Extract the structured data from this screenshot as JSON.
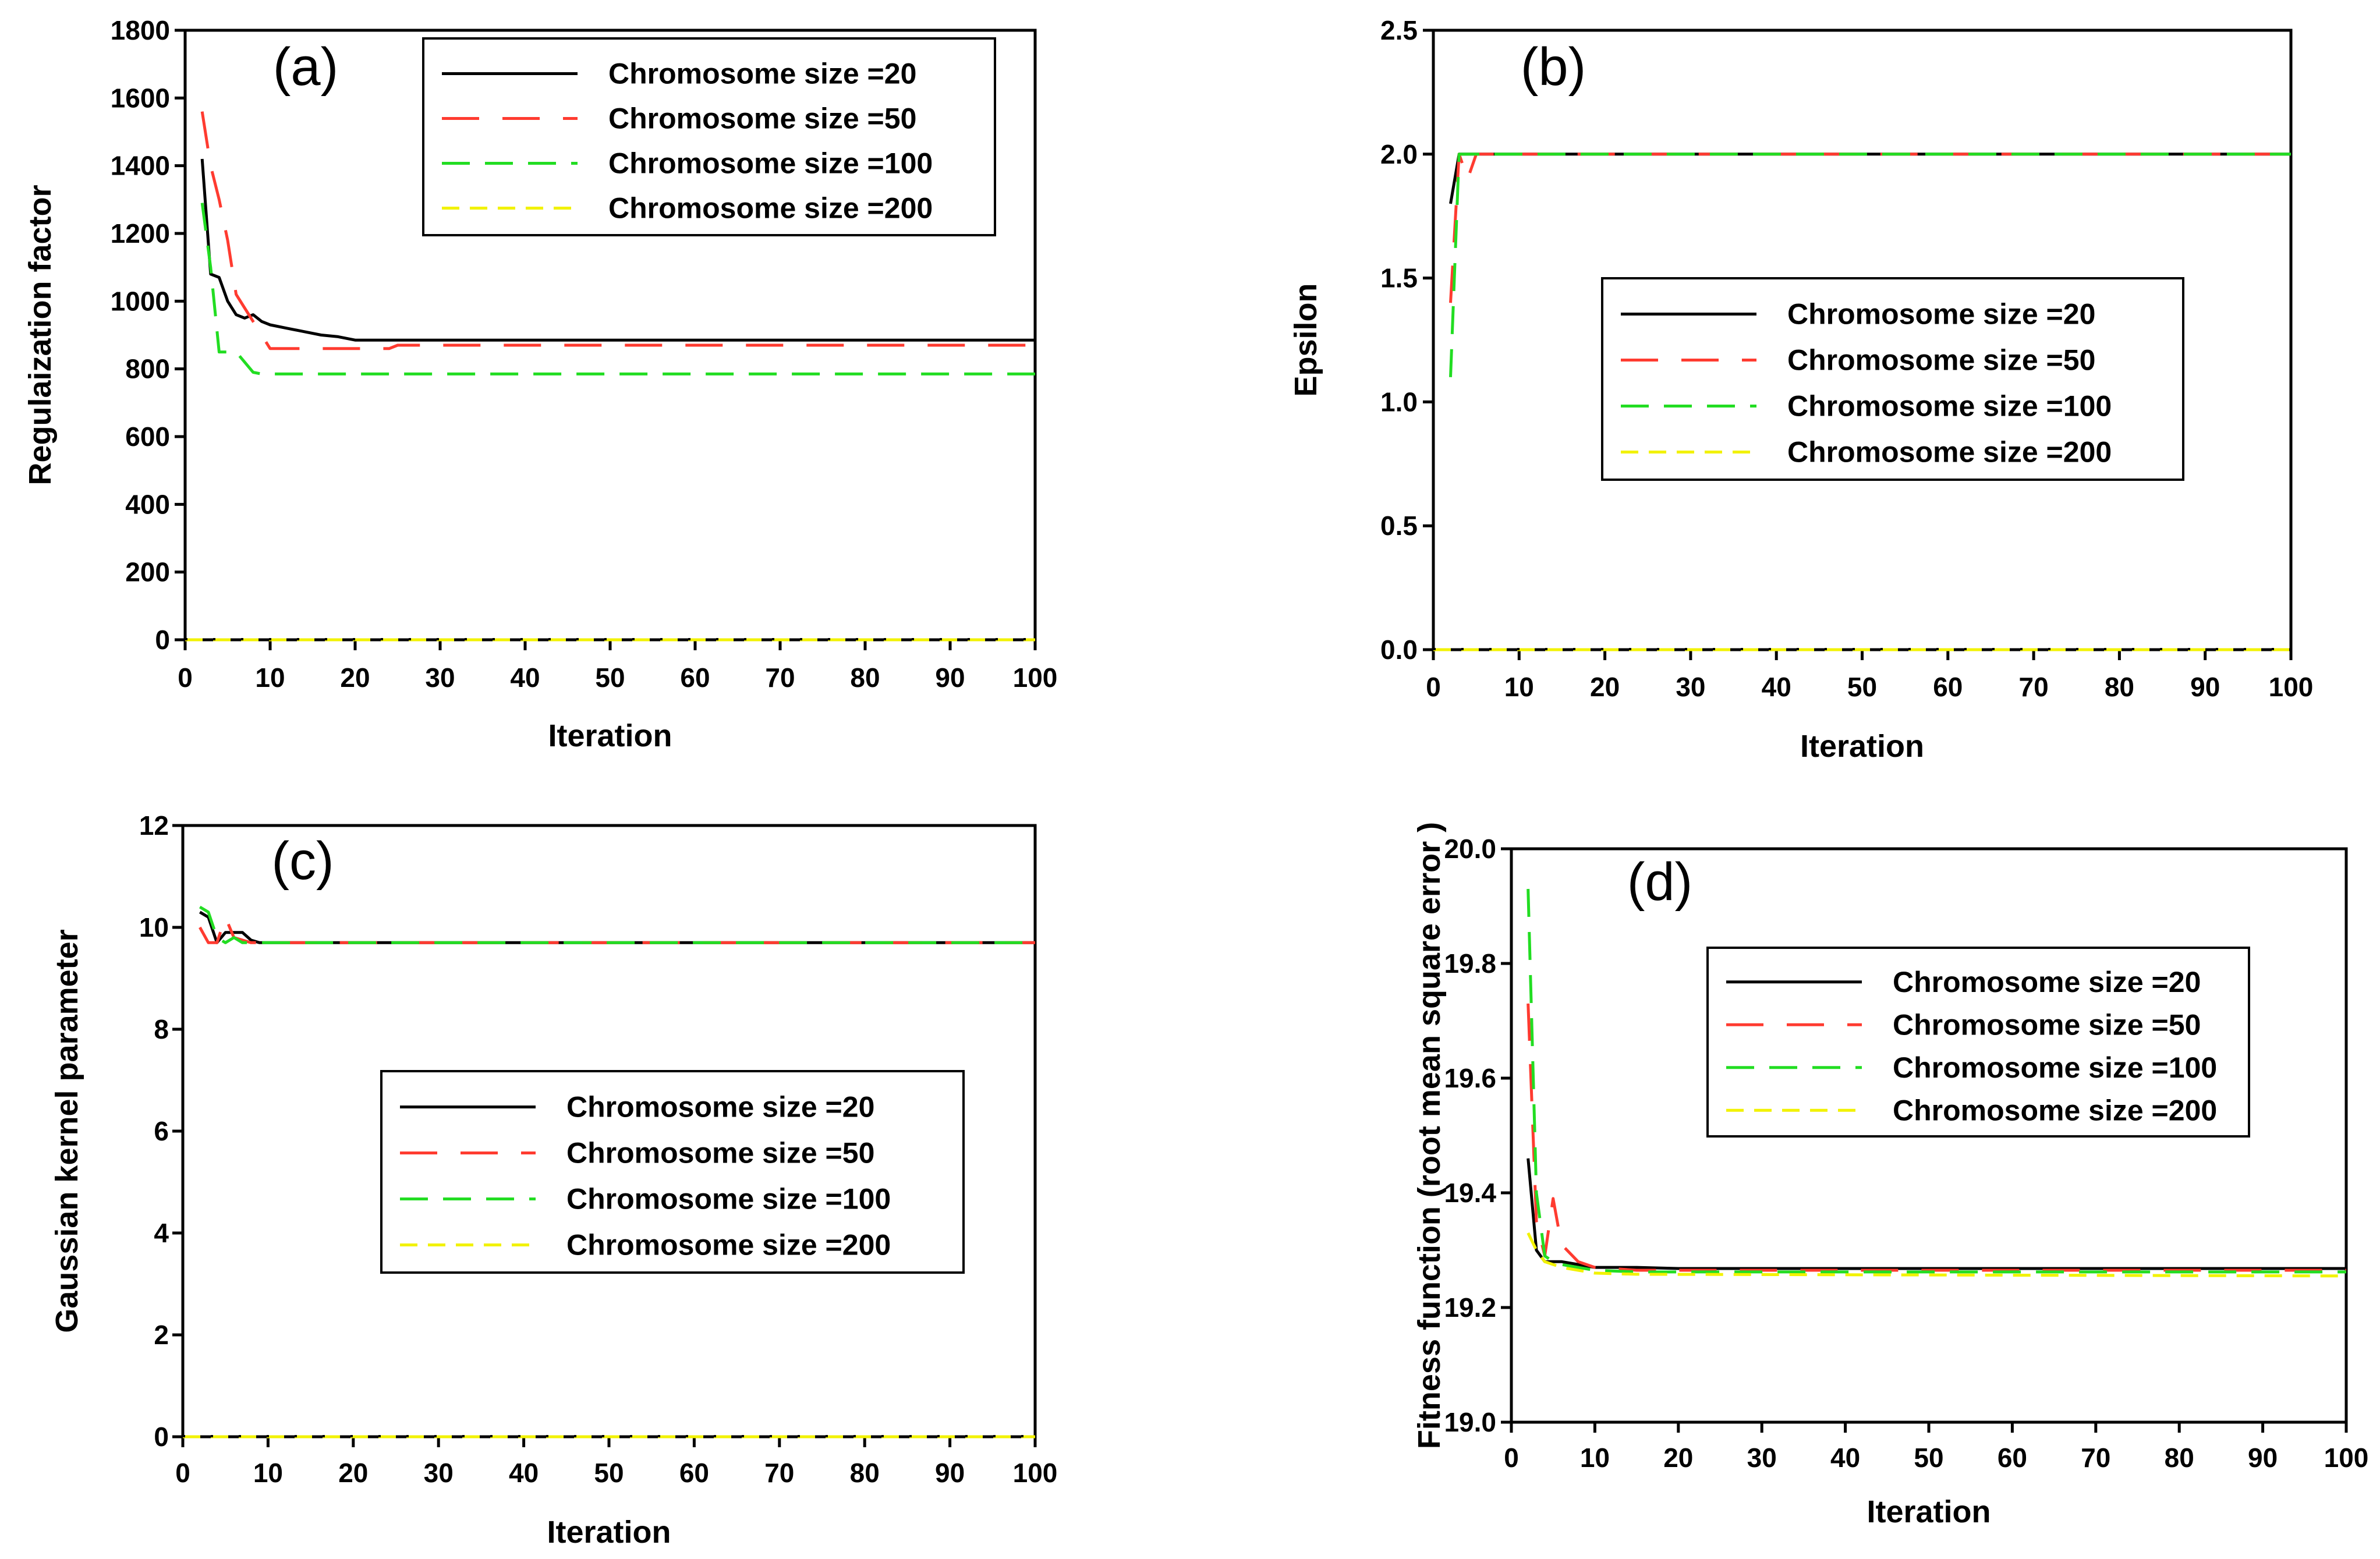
{
  "figure": {
    "type": "multi-panel line chart",
    "legend_entries": [
      "Chromosome size =20",
      "Chromosome size =50",
      "Chromosome size =100",
      "Chromosome size =200"
    ]
  },
  "chart_data": [
    {
      "type": "line",
      "panel_label": "(a)",
      "xlabel": "Iteration",
      "ylabel": "Regulaization factor",
      "xlim": [
        0,
        100
      ],
      "ylim": [
        0,
        1800
      ],
      "xticks": [
        0,
        10,
        20,
        30,
        40,
        50,
        60,
        70,
        80,
        90,
        100
      ],
      "yticks": [
        0,
        200,
        400,
        600,
        800,
        1000,
        1200,
        1400,
        1600,
        1800
      ],
      "ytick_labels": [
        "0",
        "200",
        "400",
        "600",
        "800",
        "1000",
        "1200",
        "1400",
        "1600",
        "1800"
      ],
      "legend_position": "top-right",
      "series": [
        {
          "name": "Chromosome size =20",
          "color": "#000000",
          "style": "solid",
          "x": [
            2,
            3,
            4,
            5,
            6,
            7,
            8,
            9,
            10,
            12,
            14,
            16,
            18,
            20,
            30,
            40,
            50,
            60,
            70,
            80,
            90,
            100
          ],
          "y": [
            1420,
            1080,
            1070,
            1000,
            960,
            950,
            960,
            940,
            930,
            920,
            910,
            900,
            895,
            885,
            885,
            885,
            885,
            885,
            885,
            885,
            885,
            885
          ]
        },
        {
          "name": "Chromosome size =50",
          "color": "#ff3b30",
          "style": "dashed",
          "x": [
            2,
            3,
            4,
            5,
            6,
            7,
            8,
            9,
            10,
            15,
            20,
            24,
            25,
            30,
            40,
            50,
            60,
            70,
            80,
            90,
            100
          ],
          "y": [
            1560,
            1400,
            1300,
            1180,
            1020,
            980,
            940,
            900,
            860,
            860,
            860,
            860,
            870,
            870,
            870,
            870,
            870,
            870,
            870,
            870,
            870
          ]
        },
        {
          "name": "Chromosome size =100",
          "color": "#22dd22",
          "style": "dashed",
          "x": [
            2,
            3,
            4,
            5,
            6,
            7,
            8,
            9,
            10,
            15,
            20,
            30,
            40,
            50,
            60,
            70,
            80,
            90,
            100
          ],
          "y": [
            1290,
            1100,
            850,
            850,
            850,
            820,
            790,
            785,
            785,
            785,
            785,
            785,
            785,
            785,
            785,
            785,
            785,
            785,
            785
          ]
        },
        {
          "name": "Chromosome size =200",
          "color": "#f2f200",
          "style": "dashed",
          "x": [
            0,
            100
          ],
          "y": [
            0,
            0
          ]
        }
      ]
    },
    {
      "type": "line",
      "panel_label": "(b)",
      "xlabel": "Iteration",
      "ylabel": "Epsilon",
      "xlim": [
        0,
        100
      ],
      "ylim": [
        0,
        2.5
      ],
      "xticks": [
        0,
        10,
        20,
        30,
        40,
        50,
        60,
        70,
        80,
        90,
        100
      ],
      "yticks": [
        0,
        0.5,
        1,
        1.5,
        2,
        2.5
      ],
      "ytick_labels": [
        "0.0",
        "0.5",
        "1.0",
        "1.5",
        "2.0",
        "2.5"
      ],
      "legend_position": "center",
      "series": [
        {
          "name": "Chromosome size =20",
          "color": "#000000",
          "style": "solid",
          "x": [
            2,
            3,
            4,
            100
          ],
          "y": [
            1.8,
            2.0,
            2.0,
            2.0
          ]
        },
        {
          "name": "Chromosome size =50",
          "color": "#ff3b30",
          "style": "dashed",
          "x": [
            2,
            3,
            4,
            5,
            100
          ],
          "y": [
            1.4,
            2.0,
            1.9,
            2.0,
            2.0
          ]
        },
        {
          "name": "Chromosome size =100",
          "color": "#22dd22",
          "style": "dashed",
          "x": [
            2,
            3,
            4,
            100
          ],
          "y": [
            1.1,
            2.0,
            2.0,
            2.0
          ]
        },
        {
          "name": "Chromosome size =200",
          "color": "#f2f200",
          "style": "dashed",
          "x": [
            0,
            100
          ],
          "y": [
            0,
            0
          ]
        }
      ]
    },
    {
      "type": "line",
      "panel_label": "(c)",
      "xlabel": "Iteration",
      "ylabel": "Gaussian kernel parameter",
      "xlim": [
        0,
        100
      ],
      "ylim": [
        0,
        12
      ],
      "xticks": [
        0,
        10,
        20,
        30,
        40,
        50,
        60,
        70,
        80,
        90,
        100
      ],
      "yticks": [
        0,
        2,
        4,
        6,
        8,
        10,
        12
      ],
      "ytick_labels": [
        "0",
        "2",
        "4",
        "6",
        "8",
        "10",
        "12"
      ],
      "legend_position": "center",
      "series": [
        {
          "name": "Chromosome size =20",
          "color": "#000000",
          "style": "solid",
          "x": [
            2,
            3,
            4,
            5,
            6,
            7,
            8,
            9,
            100
          ],
          "y": [
            10.3,
            10.2,
            9.7,
            9.9,
            9.9,
            9.9,
            9.75,
            9.7,
            9.7
          ]
        },
        {
          "name": "Chromosome size =50",
          "color": "#ff3b30",
          "style": "dashed",
          "x": [
            2,
            3,
            4,
            5,
            6,
            7,
            8,
            100
          ],
          "y": [
            10.0,
            9.7,
            9.7,
            10.2,
            9.8,
            9.75,
            9.7,
            9.7
          ]
        },
        {
          "name": "Chromosome size =100",
          "color": "#22dd22",
          "style": "dashed",
          "x": [
            2,
            3,
            4,
            5,
            6,
            7,
            100
          ],
          "y": [
            10.4,
            10.3,
            9.8,
            9.7,
            9.8,
            9.7,
            9.7
          ]
        },
        {
          "name": "Chromosome size =200",
          "color": "#f2f200",
          "style": "dashed",
          "x": [
            0,
            100
          ],
          "y": [
            0,
            0
          ]
        }
      ]
    },
    {
      "type": "line",
      "panel_label": "(d)",
      "xlabel": "Iteration",
      "ylabel": "Fitness function (root mean square error )",
      "xlim": [
        0,
        100
      ],
      "ylim": [
        19.0,
        20.0
      ],
      "xticks": [
        0,
        10,
        20,
        30,
        40,
        50,
        60,
        70,
        80,
        90,
        100
      ],
      "yticks": [
        19.0,
        19.2,
        19.4,
        19.6,
        19.8,
        20.0
      ],
      "ytick_labels": [
        "19.0",
        "19.2",
        "19.4",
        "19.6",
        "19.8",
        "20.0"
      ],
      "legend_position": "upper-center",
      "series": [
        {
          "name": "Chromosome size =20",
          "color": "#000000",
          "style": "solid",
          "x": [
            2,
            3,
            4,
            6,
            8,
            10,
            15,
            20,
            100
          ],
          "y": [
            19.46,
            19.3,
            19.28,
            19.28,
            19.275,
            19.27,
            19.27,
            19.268,
            19.268
          ]
        },
        {
          "name": "Chromosome size =50",
          "color": "#ff3b30",
          "style": "dashed",
          "x": [
            2,
            3,
            4,
            5,
            6,
            8,
            10,
            15,
            100
          ],
          "y": [
            19.73,
            19.35,
            19.29,
            19.39,
            19.31,
            19.28,
            19.27,
            19.265,
            19.265
          ]
        },
        {
          "name": "Chromosome size =100",
          "color": "#22dd22",
          "style": "dashed",
          "x": [
            2,
            3,
            4,
            5,
            6,
            8,
            10,
            15,
            100
          ],
          "y": [
            19.93,
            19.4,
            19.29,
            19.28,
            19.275,
            19.27,
            19.265,
            19.262,
            19.262
          ]
        },
        {
          "name": "Chromosome size =200",
          "color": "#f2f200",
          "style": "dashed",
          "x": [
            2,
            3,
            4,
            6,
            8,
            10,
            15,
            100
          ],
          "y": [
            19.33,
            19.3,
            19.28,
            19.27,
            19.265,
            19.26,
            19.258,
            19.255
          ]
        }
      ]
    }
  ]
}
